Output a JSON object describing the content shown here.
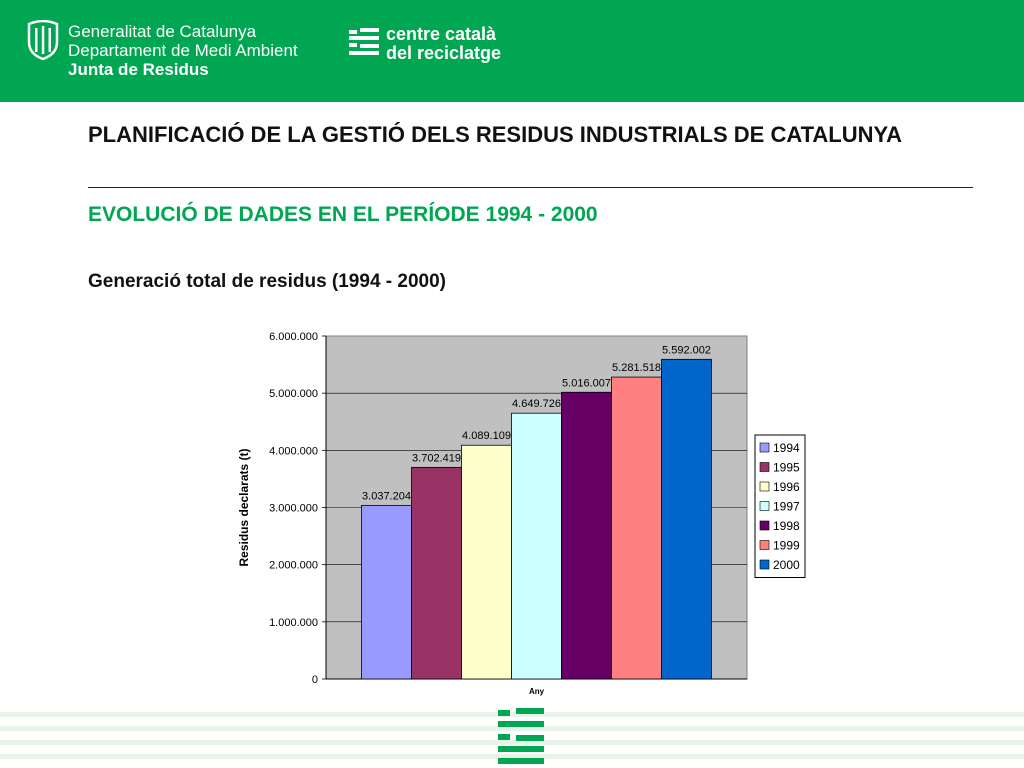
{
  "header": {
    "generalitat_lines": [
      "Generalitat de Catalunya",
      "Departament de Medi Ambient",
      "Junta de Residus"
    ],
    "centre_lines": [
      "centre català",
      "del reciclatge"
    ],
    "brand_color": "#00a651"
  },
  "main": {
    "title": "PLANIFICACIÓ DE LA GESTIÓ DELS RESIDUS INDUSTRIALS DE CATALUNYA",
    "subtitle": "EVOLUCIÓ DE DADES EN EL PERÍODE 1994 - 2000",
    "chart_heading": "Generació total de residus (1994 - 2000)"
  },
  "chart_data": {
    "type": "bar",
    "xlabel": "Any",
    "ylabel": "Residus declarats (t)",
    "ylim": [
      0,
      6000000
    ],
    "yticks": [
      "0",
      "1.000.000",
      "2.000.000",
      "3.000.000",
      "4.000.000",
      "5.000.000",
      "6.000.000"
    ],
    "grid": true,
    "legend_position": "right",
    "series": [
      {
        "name": "1994",
        "value": 3037204,
        "label": "3.037.204",
        "color": "#9999ff"
      },
      {
        "name": "1995",
        "value": 3702419,
        "label": "3.702.419",
        "color": "#993366"
      },
      {
        "name": "1996",
        "value": 4089109,
        "label": "4.089.109",
        "color": "#ffffcc"
      },
      {
        "name": "1997",
        "value": 4649726,
        "label": "4.649.726",
        "color": "#ccffff"
      },
      {
        "name": "1998",
        "value": 5016007,
        "label": "5.016.007",
        "color": "#660066"
      },
      {
        "name": "1999",
        "value": 5281518,
        "label": "5.281.518",
        "color": "#ff8080"
      },
      {
        "name": "2000",
        "value": 5592002,
        "label": "5.592.002",
        "color": "#0066cc"
      }
    ]
  }
}
